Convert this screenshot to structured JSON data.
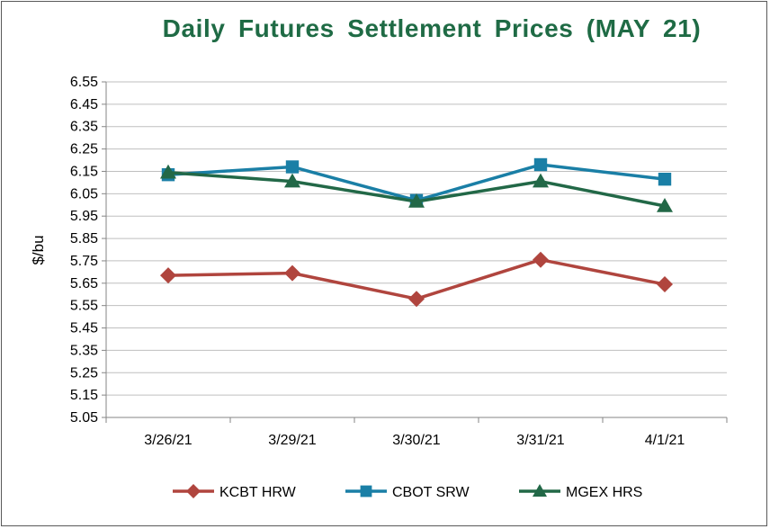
{
  "chart_data": {
    "type": "line",
    "title": "Daily Futures Settlement Prices (MAY 21)",
    "xlabel": "",
    "ylabel": "$/bu",
    "categories": [
      "3/26/21",
      "3/29/21",
      "3/30/21",
      "3/31/21",
      "4/1/21"
    ],
    "ylim": [
      5.05,
      6.55
    ],
    "yticks": [
      "6.55",
      "6.45",
      "6.35",
      "6.25",
      "6.15",
      "6.05",
      "5.95",
      "5.85",
      "5.75",
      "5.65",
      "5.55",
      "5.45",
      "5.35",
      "5.25",
      "5.15",
      "5.05"
    ],
    "grid": true,
    "legend_position": "bottom",
    "series": [
      {
        "name": "KCBT HRW",
        "color": "#b0453e",
        "marker": "diamond",
        "values": [
          5.685,
          5.695,
          5.58,
          5.755,
          5.645
        ]
      },
      {
        "name": "CBOT SRW",
        "color": "#1a7fa6",
        "marker": "square",
        "values": [
          6.135,
          6.17,
          6.02,
          6.18,
          6.115
        ]
      },
      {
        "name": "MGEX HRS",
        "color": "#226847",
        "marker": "triangle",
        "values": [
          6.145,
          6.105,
          6.015,
          6.105,
          5.995
        ]
      }
    ]
  }
}
